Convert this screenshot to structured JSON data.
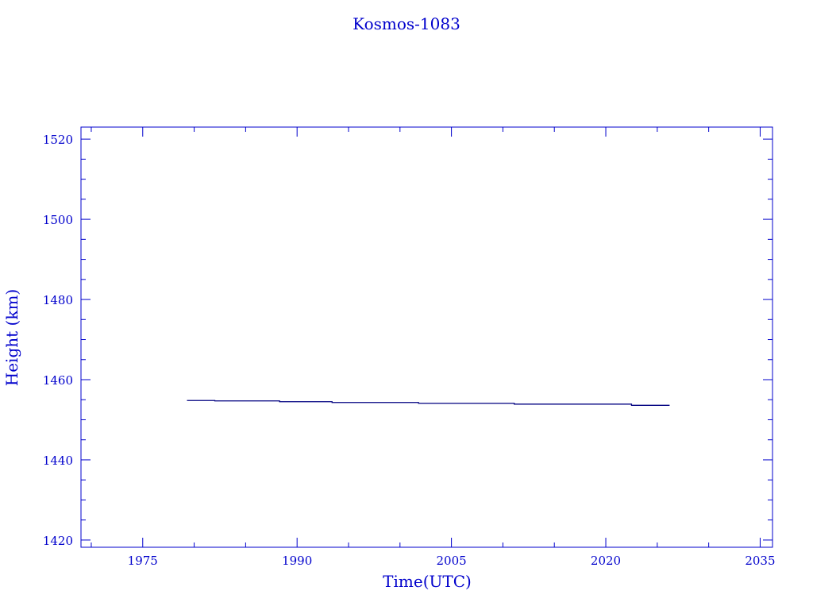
{
  "chart_data": {
    "type": "line",
    "title": "Kosmos-1083",
    "xlabel": "Time(UTC)",
    "ylabel": "Height (km)",
    "xlim": [
      1969,
      2036.2
    ],
    "ylim": [
      1418.2,
      1523
    ],
    "xticks": [
      1975,
      1990,
      2005,
      2020,
      2035
    ],
    "yticks": [
      1420,
      1440,
      1460,
      1480,
      1500,
      1520
    ],
    "grid": false,
    "step": true,
    "series": [
      {
        "x": [
          1979.3,
          1982.0,
          1988.3,
          1993.4,
          2001.8,
          2011.1,
          2022.5,
          2026.2
        ],
        "y": [
          1454.8,
          1454.7,
          1454.5,
          1454.3,
          1454.1,
          1453.9,
          1453.6,
          1453.6
        ]
      }
    ],
    "colors": {
      "axes": "#0000cc",
      "line": "#000080"
    }
  }
}
